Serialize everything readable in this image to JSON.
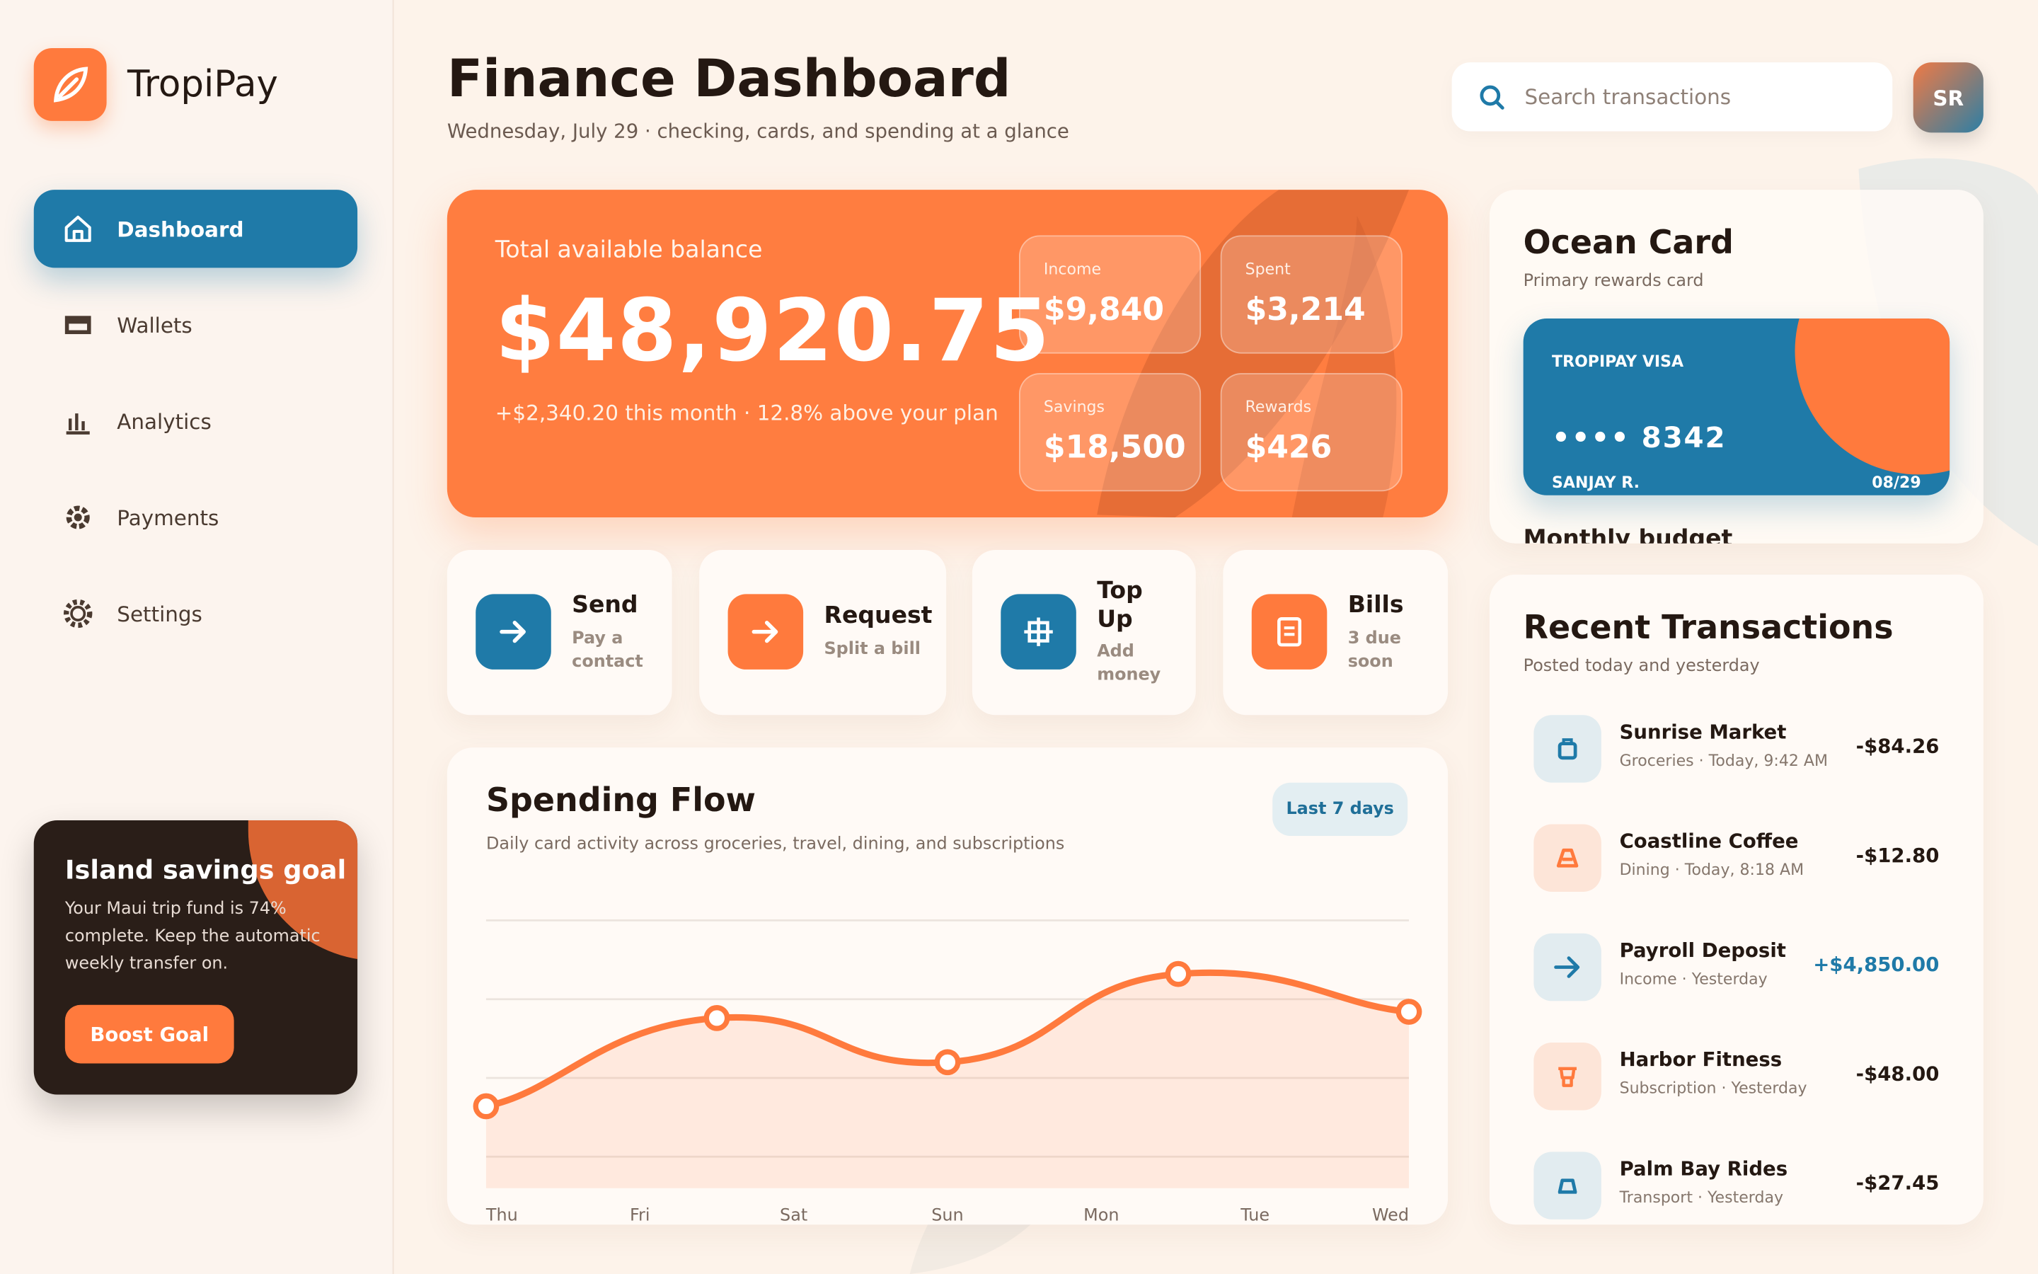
{
  "sidebar": {
    "brand": "TropiPay",
    "nav": [
      "Dashboard",
      "Wallets",
      "Analytics",
      "Payments",
      "Settings"
    ],
    "goal": {
      "title": "Island savings goal",
      "text": "Your Maui trip fund is 74% complete. Keep the automatic weekly transfer on.",
      "button": "Boost Goal"
    }
  },
  "header": {
    "title": "Finance Dashboard",
    "subtitle": "Wednesday, July 29 · checking, cards, and spending at a glance",
    "search_placeholder": "Search transactions",
    "avatar": "SR"
  },
  "balance": {
    "label": "Total available balance",
    "amount": "$48,920.75",
    "note": "+$2,340.20 this month · 12.8% above your plan",
    "stats": [
      {
        "label": "Income",
        "value": "$9,840"
      },
      {
        "label": "Spent",
        "value": "$3,214"
      },
      {
        "label": "Savings",
        "value": "$18,500"
      },
      {
        "label": "Rewards",
        "value": "$426"
      }
    ]
  },
  "actions": [
    {
      "title": "Send",
      "subtitle": "Pay a contact"
    },
    {
      "title": "Request",
      "subtitle": "Split a bill"
    },
    {
      "title": "Top Up",
      "subtitle": "Add money"
    },
    {
      "title": "Bills",
      "subtitle": "3 due soon"
    }
  ],
  "chart_data": {
    "type": "line",
    "title": "Spending Flow",
    "subtitle": "Daily card activity across groceries, travel, dining, and subscriptions",
    "badge": "Last 7 days",
    "x": [
      0,
      1.5,
      3,
      4.5,
      6
    ],
    "values": [
      16,
      44,
      30,
      58,
      46
    ],
    "color": "#ff7a3d",
    "xlim": [
      0,
      6
    ],
    "xticks": [
      {
        "value": 0,
        "label": "Thu"
      },
      {
        "value": 1,
        "label": "Fri"
      },
      {
        "value": 2,
        "label": "Sat"
      },
      {
        "value": 3,
        "label": "Sun"
      },
      {
        "value": 4,
        "label": "Mon"
      },
      {
        "value": 5,
        "label": "Tue"
      },
      {
        "value": 6,
        "label": "Wed"
      }
    ],
    "ylim": [
      -10,
      75
    ],
    "yticks": [
      0,
      25,
      50,
      75
    ],
    "grid": true
  },
  "card": {
    "title": "Ocean Card",
    "subtitle": "Primary rewards card",
    "brand": "TROPIPAY VISA",
    "number": "•••• 8342",
    "holder": "SANJAY R.",
    "expiry": "08/29",
    "next_section": "Monthly budget"
  },
  "transactions": {
    "title": "Recent Transactions",
    "subtitle": "Posted today and yesterday",
    "items": [
      {
        "name": "Sunrise Market",
        "detail": "Groceries · Today, 9:42 AM",
        "amount": "-$84.26"
      },
      {
        "name": "Coastline Coffee",
        "detail": "Dining · Today, 8:18 AM",
        "amount": "-$12.80"
      },
      {
        "name": "Payroll Deposit",
        "detail": "Income · Yesterday",
        "amount": "+$4,850.00"
      },
      {
        "name": "Harbor Fitness",
        "detail": "Subscription · Yesterday",
        "amount": "-$48.00"
      },
      {
        "name": "Palm Bay Rides",
        "detail": "Transport · Yesterday",
        "amount": "-$27.45"
      }
    ]
  }
}
